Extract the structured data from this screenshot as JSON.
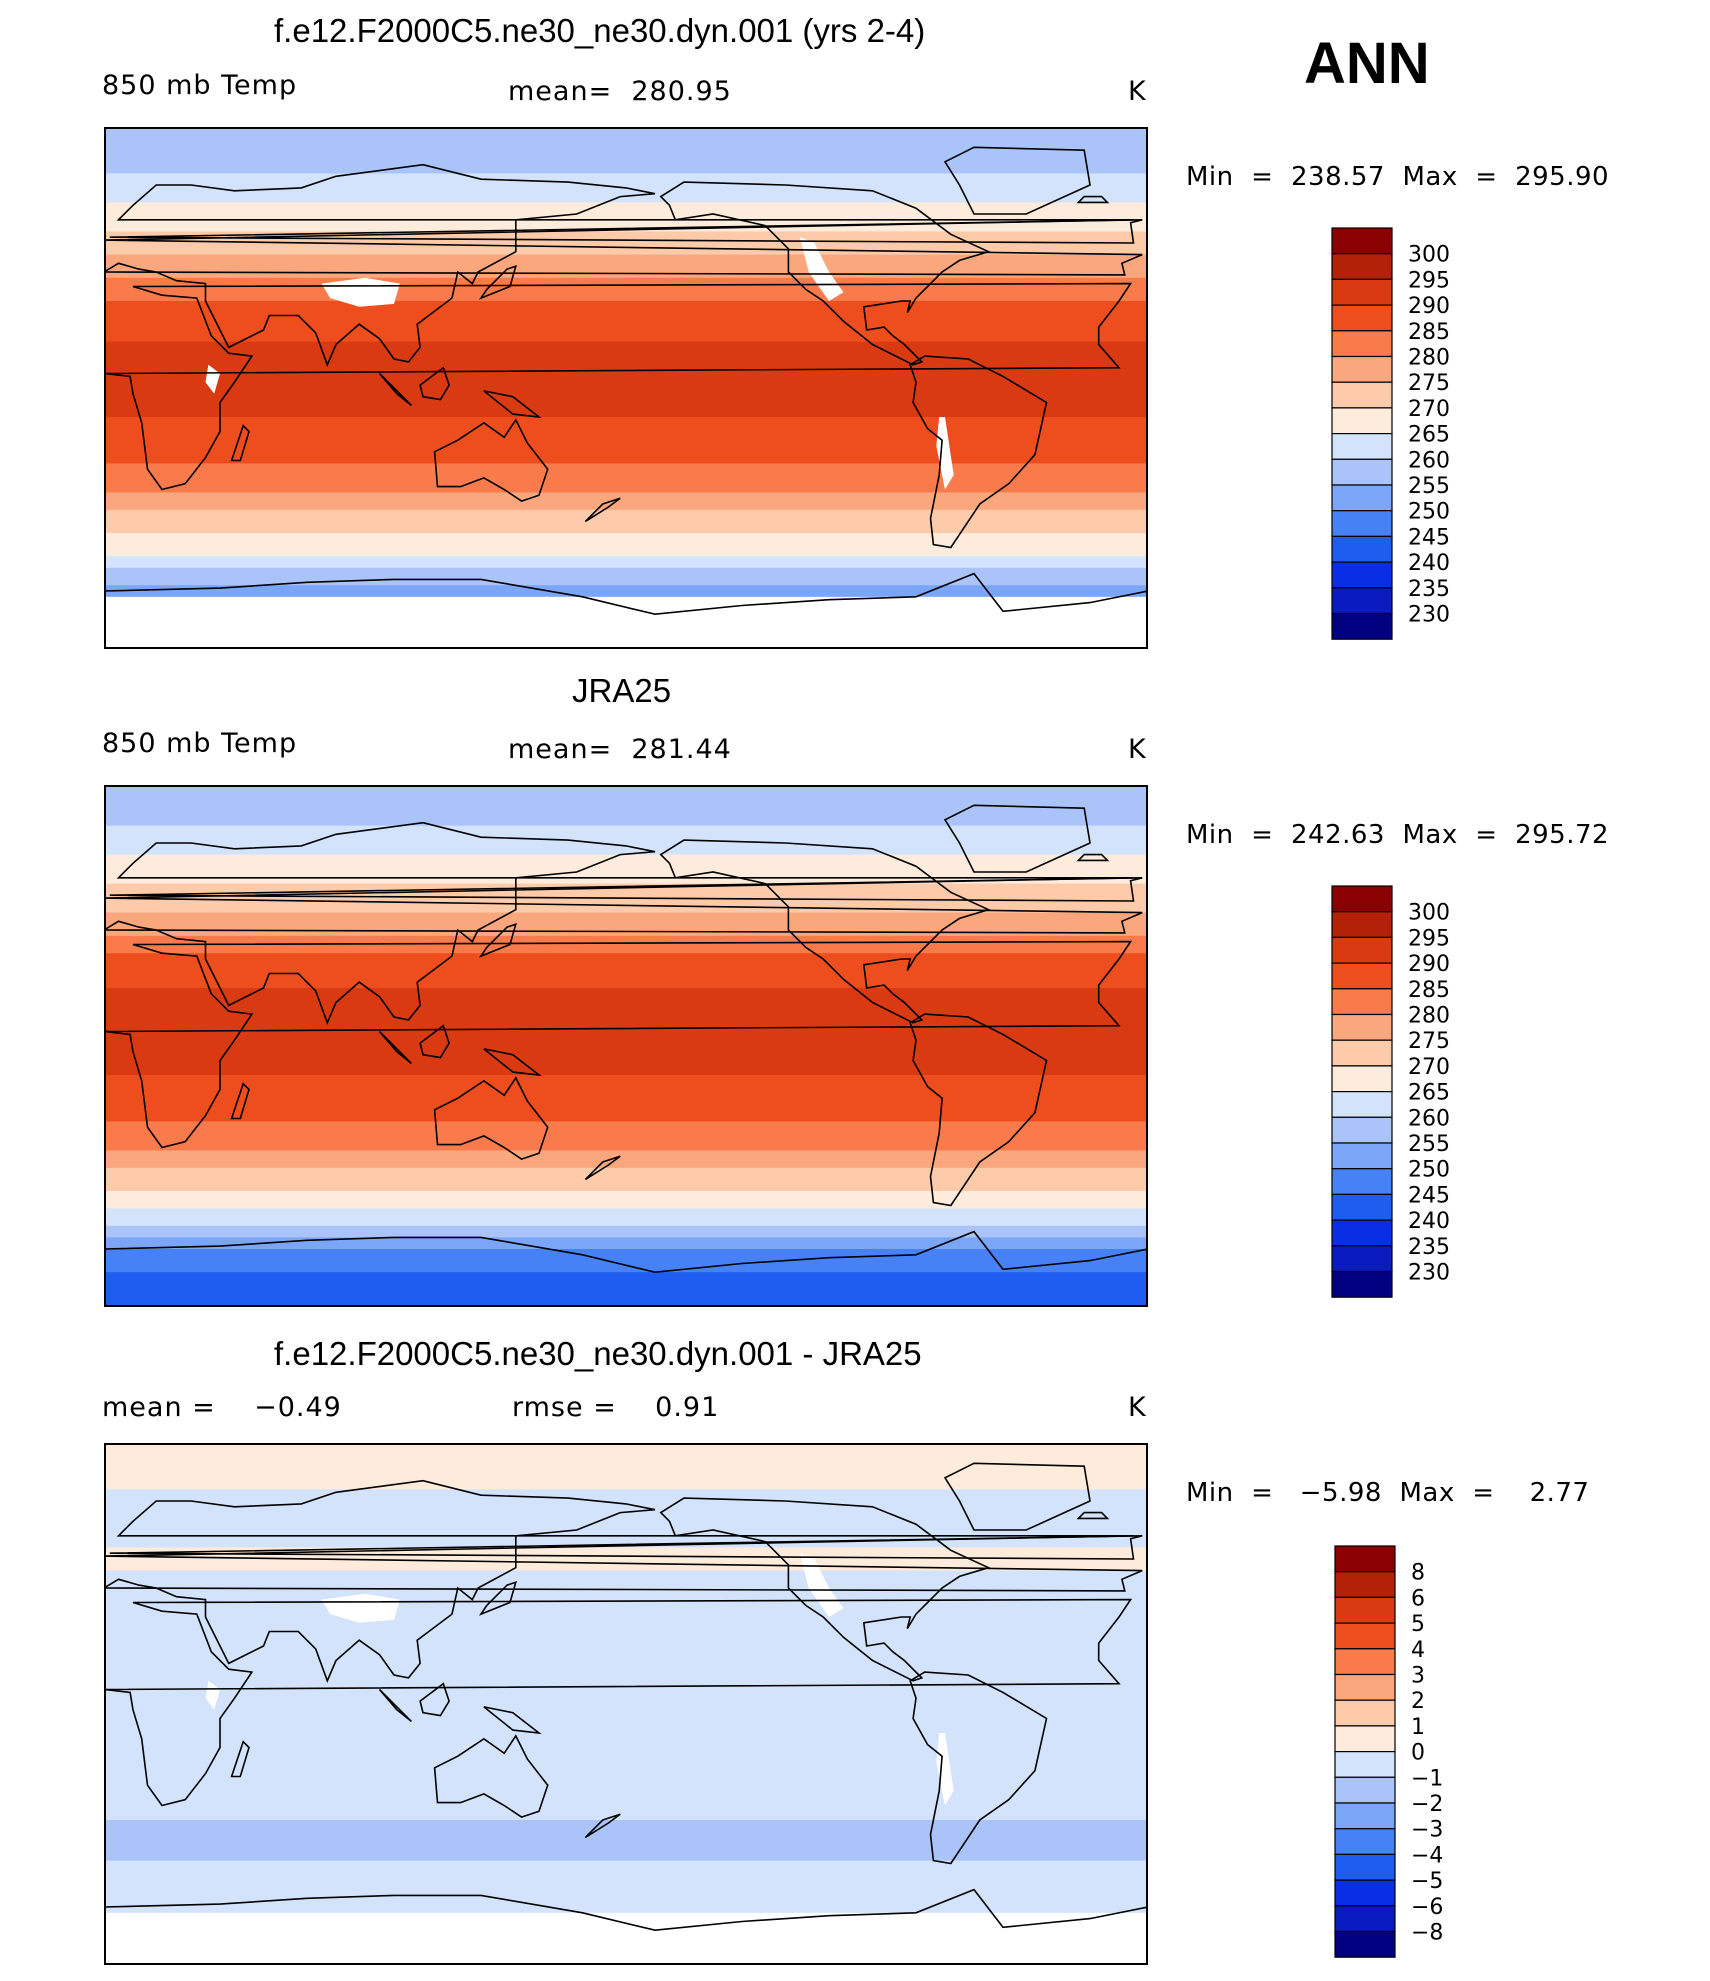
{
  "season": "ANN",
  "colors": {
    "temp_scale": [
      "#000080",
      "#0a1cc0",
      "#0a2ee6",
      "#1f5cf0",
      "#4682f5",
      "#7ba6f7",
      "#aac4fa",
      "#d2e3fb",
      "#fdebdb",
      "#fdcbaa",
      "#fba77e",
      "#f97b4c",
      "#ee4e1e",
      "#d93a12",
      "#b22108",
      "#8b0000"
    ],
    "diff_scale": [
      "#000080",
      "#0a1cc0",
      "#0a2ee6",
      "#1f5cf0",
      "#4682f5",
      "#7ba6f7",
      "#aac4fa",
      "#d2e3fb",
      "#fdebdb",
      "#fdcbaa",
      "#fba77e",
      "#f97b4c",
      "#ee4e1e",
      "#d93a12",
      "#b22108",
      "#8b0000"
    ],
    "land_outline": "#000000",
    "missing": "#ffffff"
  },
  "chart_data": [
    {
      "type": "heatmap",
      "title": "f.e12.F2000C5.ne30_ne30.dyn.001 (yrs 2-4)",
      "left_label": "850 mb Temp",
      "center_label": "mean=  280.95",
      "units": "K",
      "min_max": "Min  =  238.57  Max  =  295.90",
      "colorbar_levels": [
        "300",
        "295",
        "290",
        "285",
        "280",
        "275",
        "270",
        "265",
        "260",
        "255",
        "250",
        "245",
        "240",
        "235",
        "230"
      ],
      "zonal_profile": {
        "lat": [
          90,
          80,
          70,
          60,
          50,
          40,
          30,
          20,
          10,
          0,
          -10,
          -20,
          -30,
          -40,
          -50,
          -60,
          -70,
          -80,
          -90
        ],
        "value": [
          255,
          257,
          262,
          267,
          272,
          278,
          285,
          289,
          291,
          291,
          290,
          288,
          283,
          277,
          270,
          263,
          252,
          245,
          240
        ]
      }
    },
    {
      "type": "heatmap",
      "title": "JRA25",
      "left_label": "850 mb Temp",
      "center_label": "mean=  281.44",
      "units": "K",
      "min_max": "Min  =  242.63  Max  =  295.72",
      "colorbar_levels": [
        "300",
        "295",
        "290",
        "285",
        "280",
        "275",
        "270",
        "265",
        "260",
        "255",
        "250",
        "245",
        "240",
        "235",
        "230"
      ],
      "zonal_profile": {
        "lat": [
          90,
          80,
          70,
          60,
          50,
          40,
          30,
          20,
          10,
          0,
          -10,
          -20,
          -30,
          -40,
          -50,
          -60,
          -70,
          -80,
          -90
        ],
        "value": [
          255,
          258,
          263,
          268,
          273,
          279,
          286,
          290,
          292,
          292,
          290,
          288,
          283,
          277,
          270,
          262,
          250,
          243,
          241
        ]
      }
    },
    {
      "type": "heatmap",
      "title": "f.e12.F2000C5.ne30_ne30.dyn.001 - JRA25",
      "left_label": "mean =    −0.49",
      "center_label": "rmse =    0.91",
      "units": "K",
      "min_max": "Min  =   −5.98  Max  =    2.77",
      "colorbar_levels": [
        "8",
        "6",
        "5",
        "4",
        "3",
        "2",
        "1",
        "0",
        "−1",
        "−2",
        "−3",
        "−4",
        "−5",
        "−6",
        "−8"
      ],
      "zonal_profile": {
        "lat": [
          90,
          80,
          70,
          60,
          50,
          40,
          30,
          20,
          10,
          0,
          -10,
          -20,
          -30,
          -40,
          -50,
          -60,
          -70,
          -80,
          -90
        ],
        "value": [
          0.5,
          0.3,
          -0.2,
          -0.5,
          0.3,
          -0.4,
          -0.6,
          -0.5,
          -0.5,
          -0.4,
          -0.5,
          -0.6,
          -0.8,
          -1.0,
          -1.2,
          -0.6,
          -0.3,
          0.2,
          0
        ]
      }
    }
  ]
}
